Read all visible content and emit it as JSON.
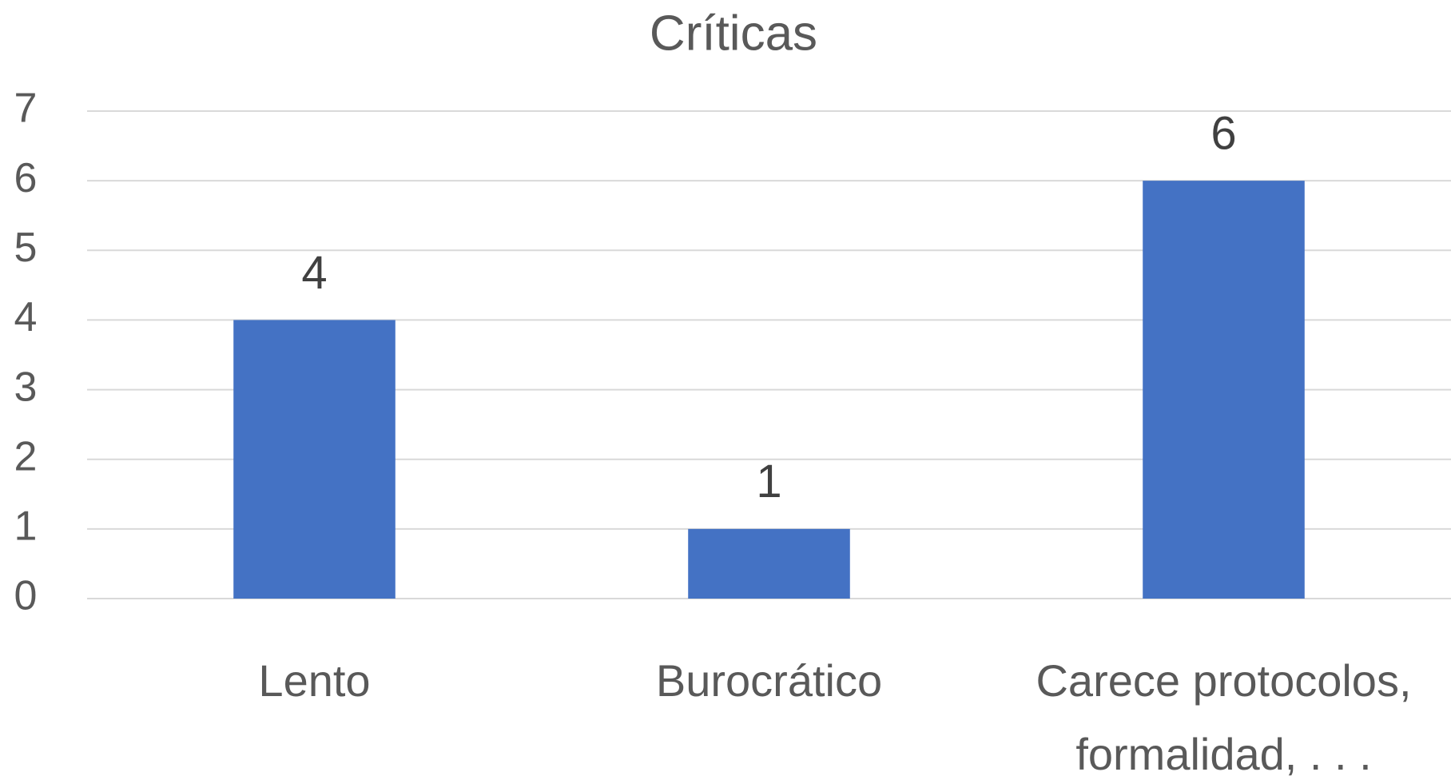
{
  "chart_data": {
    "type": "bar",
    "title": "Críticas",
    "categories": [
      "Lento",
      "Burocrático",
      "Carece protocolos, formalidad, . . ."
    ],
    "values": [
      4,
      1,
      6
    ],
    "color": "#4472c4",
    "ylim": [
      0,
      7
    ],
    "yticks": [
      0,
      1,
      2,
      3,
      4,
      5,
      6,
      7
    ],
    "grid": true
  }
}
